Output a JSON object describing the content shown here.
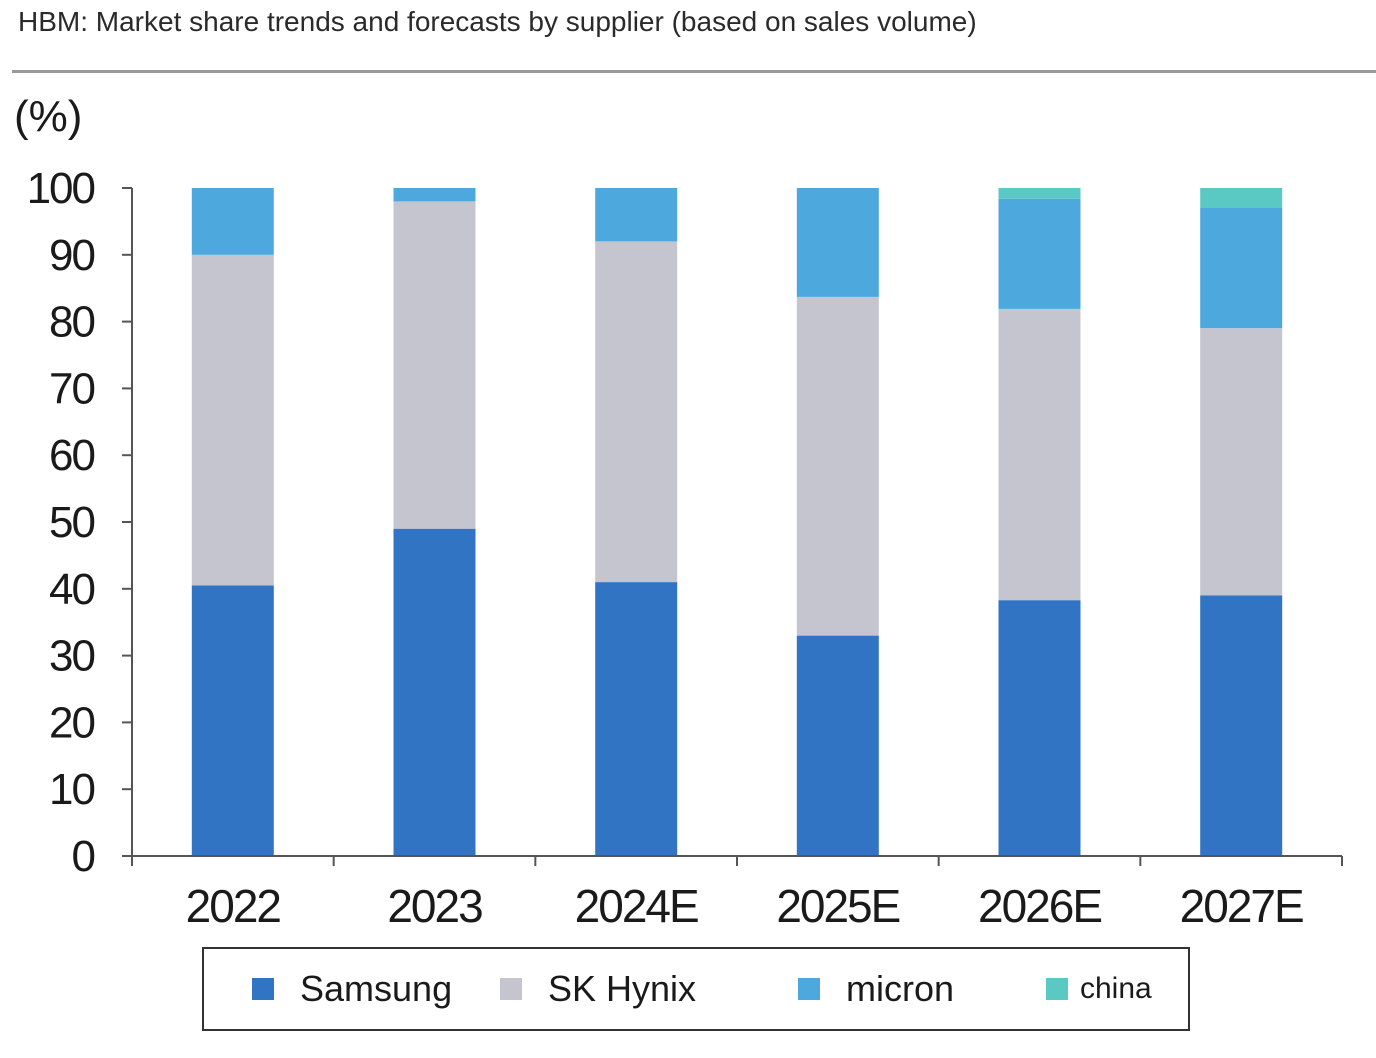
{
  "title": "HBM: Market share trends and forecasts by supplier (based on sales volume)",
  "colors": {
    "samsung": "#3274c4",
    "sk_hynix": "#c4c5cf",
    "micron": "#4da8de",
    "china": "#5ac9c4",
    "axis": "#555555",
    "text": "#1a1a1a"
  },
  "chart_data": {
    "type": "bar",
    "stacked": true,
    "categories": [
      "2022",
      "2023",
      "2024E",
      "2025E",
      "2026E",
      "2027E"
    ],
    "series": [
      {
        "name": "Samsung",
        "values": [
          40.5,
          49,
          41,
          33,
          38.3,
          39
        ]
      },
      {
        "name": "SK Hynix",
        "values": [
          49.5,
          49,
          51,
          50.7,
          43.6,
          40
        ]
      },
      {
        "name": "micron",
        "values": [
          10,
          2,
          8,
          16.3,
          16.5,
          18
        ]
      },
      {
        "name": "china",
        "values": [
          0,
          0,
          0,
          0,
          1.6,
          3
        ]
      }
    ],
    "ylabel": "(%)",
    "xlabel": "",
    "ylim": [
      0,
      100
    ],
    "yticks": [
      "0",
      "10",
      "20",
      "30",
      "40",
      "50",
      "60",
      "70",
      "80",
      "90",
      "100"
    ],
    "grid": false,
    "legend_position": "bottom"
  }
}
